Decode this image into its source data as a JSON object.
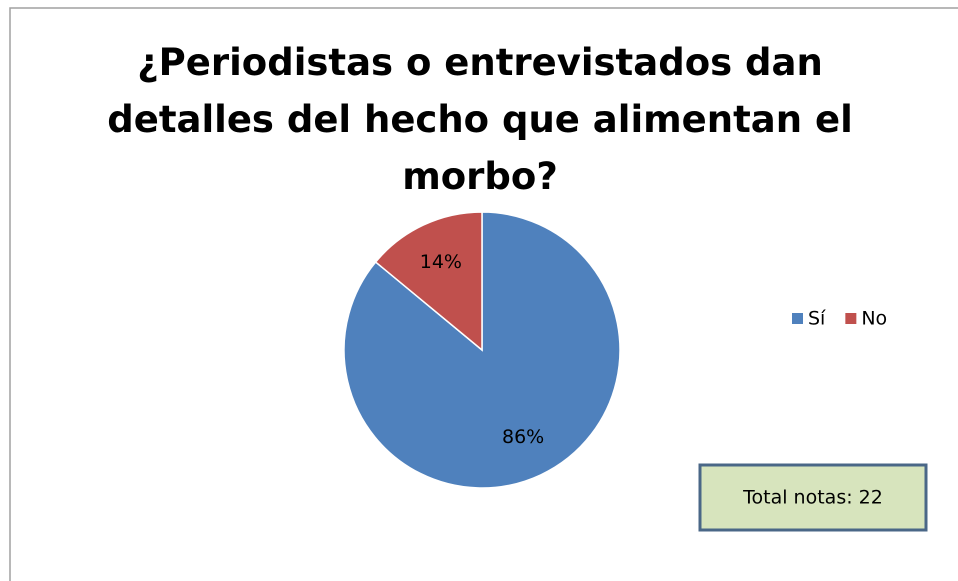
{
  "chart_data": {
    "type": "pie",
    "title": "¿Periodistas o entrevistados dan detalles del hecho que alimentan el morbo?",
    "categories": [
      "Sí",
      "No"
    ],
    "values": [
      86,
      14
    ],
    "value_labels": [
      "86%",
      "14%"
    ],
    "colors": [
      "#4f81bd",
      "#c0504d"
    ],
    "legend": "right",
    "annotation": "Total notas: 22"
  }
}
